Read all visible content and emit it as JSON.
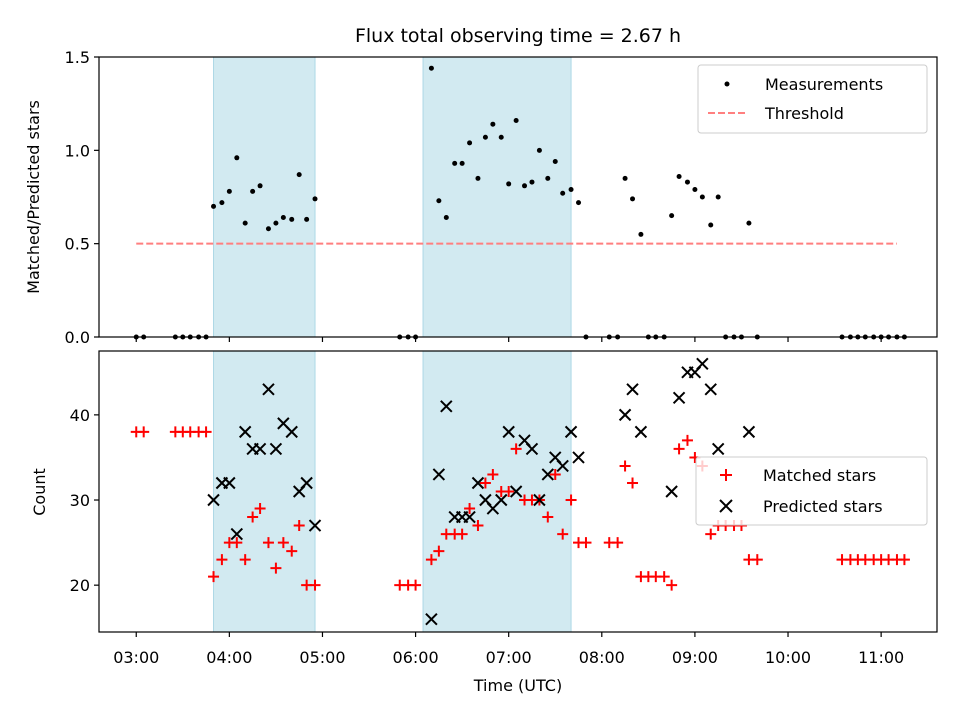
{
  "chart_data": {
    "title": "Flux total observing time = 2.67 h",
    "xlabel": "Time (UTC)",
    "x_unit": "hours UTC",
    "xlim": [
      2.6,
      11.6
    ],
    "xticks": [
      3,
      4,
      5,
      6,
      7,
      8,
      9,
      10,
      11
    ],
    "xtick_labels": [
      "03:00",
      "04:00",
      "05:00",
      "06:00",
      "07:00",
      "08:00",
      "09:00",
      "10:00",
      "11:00"
    ],
    "shaded_intervals": [
      [
        3.83,
        4.92
      ],
      [
        6.08,
        7.67
      ]
    ],
    "shade_color": "#add8e6",
    "panels": [
      {
        "type": "scatter",
        "ylabel": "Matched/Predicted stars",
        "ylim": [
          0.0,
          1.5
        ],
        "yticks": [
          0.0,
          0.5,
          1.0,
          1.5
        ],
        "ytick_labels": [
          "0.0",
          "0.5",
          "1.0",
          "1.5"
        ],
        "legend": "top-right",
        "series": [
          {
            "name": "Measurements",
            "marker": "dot",
            "color": "#000000",
            "points": [
              [
                3.0,
                0
              ],
              [
                3.08,
                0
              ],
              [
                3.42,
                0
              ],
              [
                3.5,
                0
              ],
              [
                3.58,
                0
              ],
              [
                3.67,
                0
              ],
              [
                3.75,
                0
              ],
              [
                3.83,
                0.7
              ],
              [
                3.92,
                0.72
              ],
              [
                4.0,
                0.78
              ],
              [
                4.08,
                0.96
              ],
              [
                4.17,
                0.61
              ],
              [
                4.25,
                0.78
              ],
              [
                4.33,
                0.81
              ],
              [
                4.42,
                0.58
              ],
              [
                4.5,
                0.61
              ],
              [
                4.58,
                0.64
              ],
              [
                4.67,
                0.63
              ],
              [
                4.75,
                0.87
              ],
              [
                4.83,
                0.63
              ],
              [
                4.92,
                0.74
              ],
              [
                5.83,
                0
              ],
              [
                5.92,
                0
              ],
              [
                6.0,
                0
              ],
              [
                6.17,
                1.44
              ],
              [
                6.25,
                0.73
              ],
              [
                6.33,
                0.64
              ],
              [
                6.42,
                0.93
              ],
              [
                6.5,
                0.93
              ],
              [
                6.58,
                1.04
              ],
              [
                6.67,
                0.85
              ],
              [
                6.75,
                1.07
              ],
              [
                6.83,
                1.14
              ],
              [
                6.92,
                1.07
              ],
              [
                7.0,
                0.82
              ],
              [
                7.08,
                1.16
              ],
              [
                7.17,
                0.81
              ],
              [
                7.25,
                0.83
              ],
              [
                7.33,
                1.0
              ],
              [
                7.42,
                0.85
              ],
              [
                7.5,
                0.94
              ],
              [
                7.58,
                0.77
              ],
              [
                7.67,
                0.79
              ],
              [
                7.75,
                0.72
              ],
              [
                7.83,
                0
              ],
              [
                8.08,
                0
              ],
              [
                8.17,
                0
              ],
              [
                8.25,
                0.85
              ],
              [
                8.33,
                0.74
              ],
              [
                8.42,
                0.55
              ],
              [
                8.5,
                0
              ],
              [
                8.58,
                0
              ],
              [
                8.67,
                0
              ],
              [
                8.75,
                0.65
              ],
              [
                8.83,
                0.86
              ],
              [
                8.92,
                0.83
              ],
              [
                9.0,
                0.79
              ],
              [
                9.08,
                0.75
              ],
              [
                9.17,
                0.6
              ],
              [
                9.25,
                0.75
              ],
              [
                9.33,
                0
              ],
              [
                9.42,
                0
              ],
              [
                9.5,
                0
              ],
              [
                9.58,
                0.61
              ],
              [
                9.67,
                0
              ],
              [
                10.58,
                0
              ],
              [
                10.67,
                0
              ],
              [
                10.75,
                0
              ],
              [
                10.83,
                0
              ],
              [
                10.92,
                0
              ],
              [
                11.0,
                0
              ],
              [
                11.08,
                0
              ],
              [
                11.17,
                0
              ],
              [
                11.25,
                0
              ]
            ]
          },
          {
            "name": "Threshold",
            "marker": "dashed-line",
            "color": "#ff7f7f",
            "points": [
              [
                3.0,
                0.5
              ],
              [
                11.17,
                0.5
              ]
            ]
          }
        ]
      },
      {
        "type": "scatter",
        "ylabel": "Count",
        "ylim": [
          14.5,
          47.5
        ],
        "yticks": [
          20,
          30,
          40
        ],
        "ytick_labels": [
          "20",
          "30",
          "40"
        ],
        "legend": "center-right",
        "series": [
          {
            "name": "Matched stars",
            "marker": "plus",
            "color": "#ff0000",
            "points": [
              [
                3.0,
                38
              ],
              [
                3.08,
                38
              ],
              [
                3.42,
                38
              ],
              [
                3.5,
                38
              ],
              [
                3.58,
                38
              ],
              [
                3.67,
                38
              ],
              [
                3.75,
                38
              ],
              [
                3.83,
                21
              ],
              [
                3.92,
                23
              ],
              [
                4.0,
                25
              ],
              [
                4.08,
                25
              ],
              [
                4.17,
                23
              ],
              [
                4.25,
                28
              ],
              [
                4.33,
                29
              ],
              [
                4.42,
                25
              ],
              [
                4.5,
                22
              ],
              [
                4.58,
                25
              ],
              [
                4.67,
                24
              ],
              [
                4.75,
                27
              ],
              [
                4.83,
                20
              ],
              [
                4.92,
                20
              ],
              [
                5.83,
                20
              ],
              [
                5.92,
                20
              ],
              [
                6.0,
                20
              ],
              [
                6.17,
                23
              ],
              [
                6.25,
                24
              ],
              [
                6.33,
                26
              ],
              [
                6.42,
                26
              ],
              [
                6.5,
                26
              ],
              [
                6.58,
                29
              ],
              [
                6.67,
                27
              ],
              [
                6.75,
                32
              ],
              [
                6.83,
                33
              ],
              [
                6.92,
                31
              ],
              [
                7.0,
                31
              ],
              [
                7.08,
                36
              ],
              [
                7.17,
                30
              ],
              [
                7.25,
                30
              ],
              [
                7.33,
                30
              ],
              [
                7.42,
                28
              ],
              [
                7.5,
                33
              ],
              [
                7.58,
                26
              ],
              [
                7.67,
                30
              ],
              [
                7.75,
                25
              ],
              [
                7.83,
                25
              ],
              [
                8.08,
                25
              ],
              [
                8.17,
                25
              ],
              [
                8.25,
                34
              ],
              [
                8.33,
                32
              ],
              [
                8.42,
                21
              ],
              [
                8.5,
                21
              ],
              [
                8.58,
                21
              ],
              [
                8.67,
                21
              ],
              [
                8.75,
                20
              ],
              [
                8.83,
                36
              ],
              [
                8.92,
                37
              ],
              [
                9.0,
                35
              ],
              [
                9.08,
                34
              ],
              [
                9.17,
                26
              ],
              [
                9.25,
                27
              ],
              [
                9.33,
                27
              ],
              [
                9.42,
                27
              ],
              [
                9.5,
                27
              ],
              [
                9.58,
                23
              ],
              [
                9.67,
                23
              ],
              [
                10.58,
                23
              ],
              [
                10.67,
                23
              ],
              [
                10.75,
                23
              ],
              [
                10.83,
                23
              ],
              [
                10.92,
                23
              ],
              [
                11.0,
                23
              ],
              [
                11.08,
                23
              ],
              [
                11.17,
                23
              ],
              [
                11.25,
                23
              ]
            ]
          },
          {
            "name": "Predicted stars",
            "marker": "x",
            "color": "#000000",
            "points": [
              [
                3.83,
                30
              ],
              [
                3.92,
                32
              ],
              [
                4.0,
                32
              ],
              [
                4.08,
                26
              ],
              [
                4.17,
                38
              ],
              [
                4.25,
                36
              ],
              [
                4.33,
                36
              ],
              [
                4.42,
                43
              ],
              [
                4.5,
                36
              ],
              [
                4.58,
                39
              ],
              [
                4.67,
                38
              ],
              [
                4.75,
                31
              ],
              [
                4.83,
                32
              ],
              [
                4.92,
                27
              ],
              [
                6.17,
                16
              ],
              [
                6.25,
                33
              ],
              [
                6.33,
                41
              ],
              [
                6.42,
                28
              ],
              [
                6.5,
                28
              ],
              [
                6.58,
                28
              ],
              [
                6.67,
                32
              ],
              [
                6.75,
                30
              ],
              [
                6.83,
                29
              ],
              [
                6.92,
                30
              ],
              [
                7.0,
                38
              ],
              [
                7.08,
                31
              ],
              [
                7.17,
                37
              ],
              [
                7.25,
                36
              ],
              [
                7.33,
                30
              ],
              [
                7.42,
                33
              ],
              [
                7.5,
                35
              ],
              [
                7.58,
                34
              ],
              [
                7.67,
                38
              ],
              [
                7.75,
                35
              ],
              [
                8.25,
                40
              ],
              [
                8.33,
                43
              ],
              [
                8.42,
                38
              ],
              [
                8.75,
                31
              ],
              [
                8.83,
                42
              ],
              [
                8.92,
                45
              ],
              [
                9.0,
                45
              ],
              [
                9.08,
                46
              ],
              [
                9.17,
                43
              ],
              [
                9.25,
                36
              ],
              [
                9.58,
                38
              ]
            ]
          }
        ]
      }
    ]
  }
}
